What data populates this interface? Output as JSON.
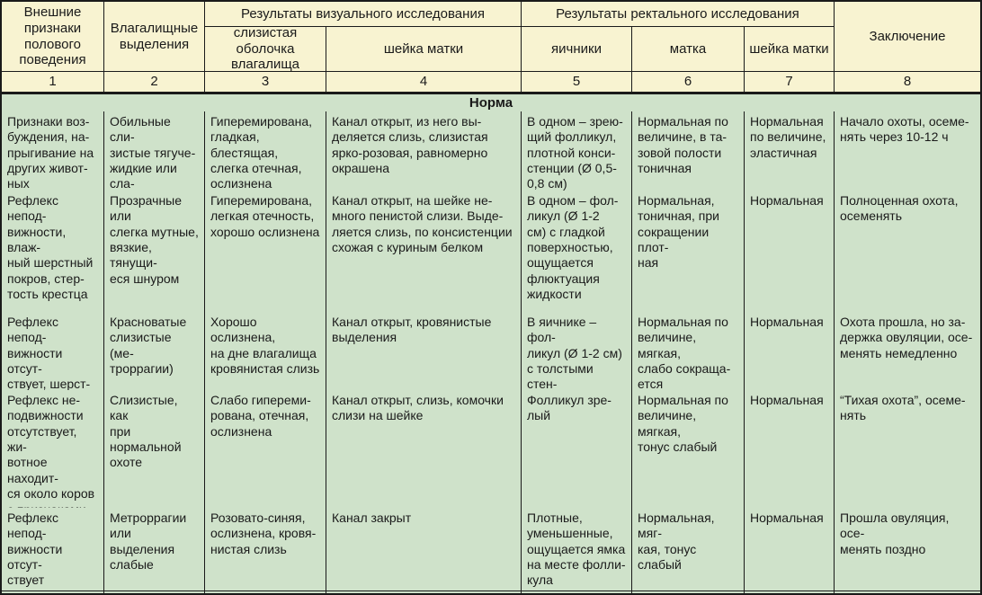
{
  "table": {
    "colors": {
      "header_bg": "#f8f3d1",
      "body_bg": "#cfe2ca",
      "border": "#1a1a1a"
    },
    "header": {
      "col1": "Внешние\nпризнаки\nполового\nповедения",
      "col2": "Влагалищные\nвыделения",
      "visual_group": "Результаты визуального исследования",
      "col3": "слизистая оболочка\nвлагалища",
      "col4": "шейка матки",
      "rectal_group": "Результаты ректального исследования",
      "col5": "яичники",
      "col6": "матка",
      "col7": "шейка матки",
      "col8": "Заключение",
      "numbers": [
        "1",
        "2",
        "3",
        "4",
        "5",
        "6",
        "7",
        "8"
      ]
    },
    "section_title": "Норма",
    "rows": [
      {
        "cells": [
          "Признаки воз-\nбуждения, на-\nпрыгивание на\nдругих живот-\nных",
          "Обильные сли-\nзистые тягуче-\nжидкие или сла-\nбое ослизнение\nполовых губ",
          "Гиперемирована,\nгладкая, блестящая,\nслегка отечная,\nослизнена",
          "Канал открыт, из него вы-\nделяется слизь, слизистая\nярко-розовая, равномерно\nокрашена",
          "В одном – зрею-\nщий фолликул,\nплотной конси-\nстенции (Ø 0,5-\n0,8 см)",
          "Нормальная по\nвеличине, в та-\nзовой полости\nтоничная",
          "Нормальная\nпо величине,\nэластичная",
          "Начало охоты, осеме-\nнять через 10-12 ч"
        ]
      },
      {
        "cells": [
          "Рефлекс непод-\nвижности, влаж-\nный шерстный\nпокров, стер-\nтость крестца",
          "Прозрачные или\nслегка мутные,\nвязкие, тянущи-\nеся шнуром",
          "Гиперемирована,\nлегкая отечность,\nхорошо ослизнена",
          "Канал открыт, на шейке не-\nмного пенистой слизи. Выде-\nляется слизь, по консистенции\nсхожая с куриным белком",
          "В одном – фол-\nликул (Ø 1-2\nсм) с гладкой\nповерхностью,\nощущается\nфлюктуация\nжидкости",
          "Нормальная,\nтоничная, при\nсокращении плот-\nная",
          "Нормальная",
          "Полноценная охота,\nосеменять"
        ]
      },
      {
        "cells": [
          "Рефлекс непод-\nвижности отсут-\nствует, шерст-\nный покров на\nкрестце стерт",
          "Красноватые\nслизистые (ме-\nтроррагии)",
          "Хорошо ослизнена,\nна дне влагалища\nкровянистая слизь",
          "Канал открыт, кровянистые\nвыделения",
          "В яичнике – фол-\nликул (Ø 1-2 см)\nс толстыми стен-\nками, зыбление\nжидкости",
          "Нормальная по\nвеличине, мягкая,\nслабо сокраща-\nется",
          "Нормальная",
          "Охота прошла, но за-\nдержка овуляции, осе-\nменять немедленно"
        ]
      },
      {
        "cells": [
          "Рефлекс не-\nподвижности\nотсутствует, жи-\nвотное находит-\nся около коров\nс признаками\nохоты",
          "Слизистые, как\nпри нормальной\nохоте",
          "Слабо гипереми-\nрована, отечная,\nослизнена",
          "Канал открыт, слизь, комочки\nслизи на шейке",
          "Фолликул зре-\nлый",
          "Нормальная по\nвеличине, мягкая,\nтонус слабый",
          "Нормальная",
          "“Тихая охота”, осеме-\nнять"
        ]
      },
      {
        "cells": [
          "Рефлекс непод-\nвижности отсут-\nствует",
          "Метроррагии\nили выделения\nслабые",
          "Розовато-синяя,\nослизнена, кровя-\nнистая слизь",
          "Канал закрыт",
          "Плотные,\nуменьшенные,\nощущается ямка\nна месте фолли-\nкула",
          "Нормальная, мяг-\nкая, тонус слабый",
          "Нормальная",
          "Прошла овуляция, осе-\nменять поздно"
        ]
      }
    ]
  }
}
